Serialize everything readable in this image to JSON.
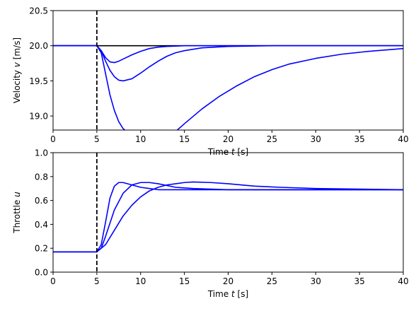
{
  "chart_data": [
    {
      "type": "line",
      "xlabel": "Time t [s]",
      "ylabel": "Velocity v [m/s]",
      "xlim": [
        0,
        40
      ],
      "ylim": [
        18.8,
        20.5
      ],
      "x_ticks": [
        0,
        5,
        10,
        15,
        20,
        25,
        30,
        35,
        40
      ],
      "y_ticks": [
        19.0,
        19.5,
        20.0,
        20.5
      ],
      "x_tick_labels": [
        "0",
        "5",
        "10",
        "15",
        "20",
        "25",
        "30",
        "35",
        "40"
      ],
      "y_tick_labels": [
        "19.0",
        "19.5",
        "20.0",
        "20.5"
      ],
      "grid": false,
      "reference": {
        "y": 20.0,
        "color": "#000000"
      },
      "vline": {
        "x": 5,
        "style": "dashed",
        "color": "#000000"
      },
      "series_color": "#0000ff",
      "series": [
        {
          "points": [
            [
              0,
              20.0
            ],
            [
              5,
              20.0
            ],
            [
              5.5,
              19.93
            ],
            [
              6,
              19.83
            ],
            [
              6.5,
              19.77
            ],
            [
              7,
              19.76
            ],
            [
              7.5,
              19.78
            ],
            [
              8,
              19.81
            ],
            [
              9,
              19.87
            ],
            [
              10,
              19.92
            ],
            [
              11,
              19.96
            ],
            [
              12,
              19.98
            ],
            [
              13,
              19.99
            ],
            [
              15,
              20.0
            ],
            [
              40,
              20.0
            ]
          ]
        },
        {
          "points": [
            [
              0,
              20.0
            ],
            [
              5,
              20.0
            ],
            [
              5.5,
              19.93
            ],
            [
              6,
              19.78
            ],
            [
              6.5,
              19.65
            ],
            [
              7,
              19.56
            ],
            [
              7.5,
              19.51
            ],
            [
              8,
              19.5
            ],
            [
              9,
              19.53
            ],
            [
              10,
              19.61
            ],
            [
              11,
              19.7
            ],
            [
              12,
              19.78
            ],
            [
              13,
              19.85
            ],
            [
              14,
              19.9
            ],
            [
              15,
              19.93
            ],
            [
              17,
              19.97
            ],
            [
              20,
              19.99
            ],
            [
              25,
              20.0
            ],
            [
              40,
              20.0
            ]
          ]
        },
        {
          "points": [
            [
              0,
              20.0
            ],
            [
              5,
              20.0
            ],
            [
              5.5,
              19.9
            ],
            [
              6,
              19.6
            ],
            [
              6.5,
              19.3
            ],
            [
              7,
              19.08
            ],
            [
              7.5,
              18.92
            ],
            [
              8,
              18.82
            ],
            [
              8.5,
              18.77
            ],
            [
              9,
              18.75
            ],
            [
              10,
              18.69
            ],
            [
              11,
              18.63
            ],
            [
              12,
              18.62
            ],
            [
              13,
              18.67
            ],
            [
              14,
              18.78
            ],
            [
              15,
              18.89
            ],
            [
              17,
              19.1
            ],
            [
              19,
              19.28
            ],
            [
              21,
              19.43
            ],
            [
              23,
              19.56
            ],
            [
              25,
              19.66
            ],
            [
              27,
              19.74
            ],
            [
              30,
              19.82
            ],
            [
              33,
              19.88
            ],
            [
              36,
              19.92
            ],
            [
              40,
              19.96
            ]
          ]
        }
      ]
    },
    {
      "type": "line",
      "xlabel": "Time t [s]",
      "ylabel": "Throttle u",
      "xlim": [
        0,
        40
      ],
      "ylim": [
        0,
        1.0
      ],
      "x_ticks": [
        0,
        5,
        10,
        15,
        20,
        25,
        30,
        35,
        40
      ],
      "y_ticks": [
        0.0,
        0.2,
        0.4,
        0.6,
        0.8,
        1.0
      ],
      "x_tick_labels": [
        "0",
        "5",
        "10",
        "15",
        "20",
        "25",
        "30",
        "35",
        "40"
      ],
      "y_tick_labels": [
        "0.0",
        "0.2",
        "0.4",
        "0.6",
        "0.8",
        "1.0"
      ],
      "grid": false,
      "vline": {
        "x": 5,
        "style": "dashed",
        "color": "#000000"
      },
      "series_color": "#0000ff",
      "series": [
        {
          "points": [
            [
              0,
              0.17
            ],
            [
              5,
              0.17
            ],
            [
              5.5,
              0.23
            ],
            [
              6,
              0.42
            ],
            [
              6.5,
              0.62
            ],
            [
              7,
              0.72
            ],
            [
              7.5,
              0.75
            ],
            [
              8,
              0.75
            ],
            [
              9,
              0.73
            ],
            [
              10,
              0.71
            ],
            [
              11,
              0.7
            ],
            [
              12,
              0.69
            ],
            [
              14,
              0.69
            ],
            [
              40,
              0.69
            ]
          ]
        },
        {
          "points": [
            [
              0,
              0.17
            ],
            [
              5,
              0.17
            ],
            [
              5.5,
              0.2
            ],
            [
              6,
              0.3
            ],
            [
              7,
              0.52
            ],
            [
              8,
              0.66
            ],
            [
              9,
              0.73
            ],
            [
              10,
              0.75
            ],
            [
              11,
              0.75
            ],
            [
              12,
              0.74
            ],
            [
              14,
              0.71
            ],
            [
              16,
              0.7
            ],
            [
              20,
              0.69
            ],
            [
              40,
              0.69
            ]
          ]
        },
        {
          "points": [
            [
              0,
              0.17
            ],
            [
              5,
              0.17
            ],
            [
              6,
              0.23
            ],
            [
              7,
              0.35
            ],
            [
              8,
              0.47
            ],
            [
              9,
              0.56
            ],
            [
              10,
              0.63
            ],
            [
              11,
              0.68
            ],
            [
              12,
              0.71
            ],
            [
              13,
              0.73
            ],
            [
              14,
              0.74
            ],
            [
              15,
              0.75
            ],
            [
              16,
              0.755
            ],
            [
              18,
              0.75
            ],
            [
              20,
              0.74
            ],
            [
              23,
              0.72
            ],
            [
              26,
              0.71
            ],
            [
              30,
              0.7
            ],
            [
              35,
              0.695
            ],
            [
              40,
              0.69
            ]
          ]
        }
      ]
    }
  ]
}
